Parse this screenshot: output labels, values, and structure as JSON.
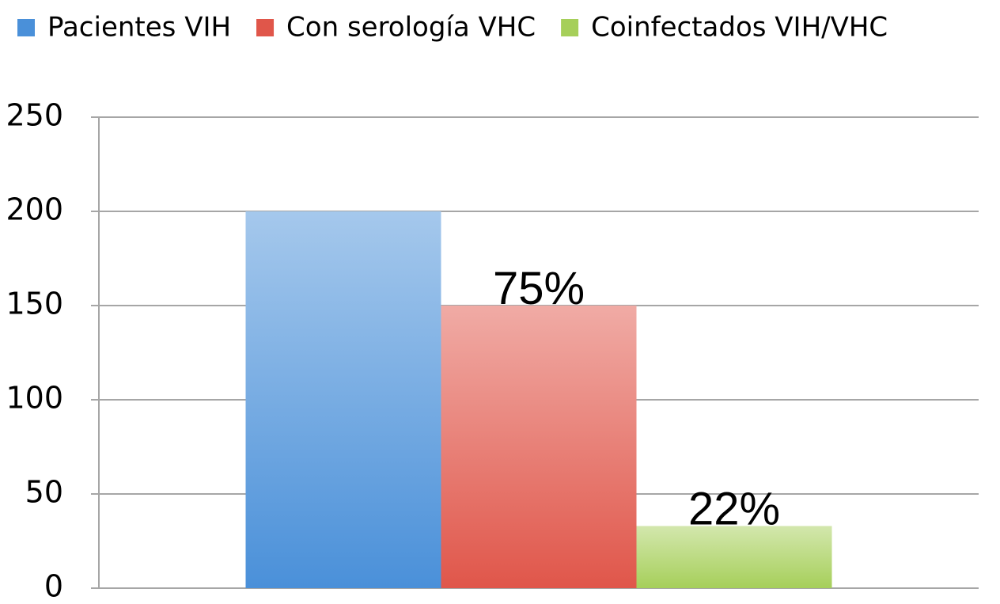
{
  "chart_data": {
    "type": "bar",
    "categories": [
      null
    ],
    "series": [
      {
        "name": "Pacientes VIH",
        "color": "#4a90d9",
        "values": [
          200
        ]
      },
      {
        "name": "Con serología VHC",
        "color": "#e0564a",
        "values": [
          150
        ]
      },
      {
        "name": "Coinfectados VIH/VHC",
        "color": "#a6cf5a",
        "values": [
          33
        ]
      }
    ],
    "annotations": [
      "75%",
      "22%"
    ],
    "ylim": [
      0,
      250
    ],
    "yticks": [
      0,
      50,
      100,
      150,
      200,
      250
    ],
    "grid": true,
    "legend": "top"
  }
}
